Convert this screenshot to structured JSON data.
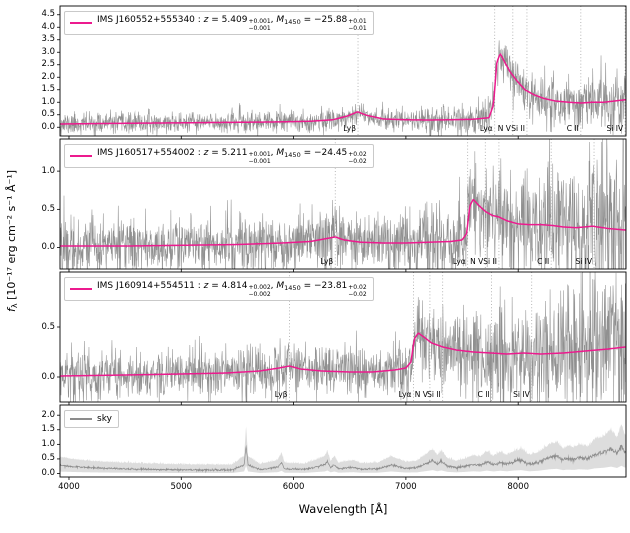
{
  "chart_data": {
    "type": "line",
    "description": "Stacked spectra of three quasars (gray noisy flux + magenta power-law/model fit) with marked emission lines, plus a bottom sky spectrum panel",
    "xlabel": "Wavelength [Å]",
    "x_range": [
      3920,
      8960
    ],
    "x_ticks": [
      4000,
      5000,
      6000,
      7000,
      8000
    ],
    "ylabel": {
      "symbol": "f",
      "subscript": "λ",
      "units": " [10⁻¹⁷ erg cm⁻² s⁻¹ Å⁻¹]"
    },
    "strings": {
      "colon": " : ",
      "z_sym": "z",
      "eq": " = ",
      "comma": ", ",
      "m_sym": "M",
      "m_sub": "1450"
    },
    "legend_position": "upper left",
    "grid": false,
    "panels": [
      {
        "id": "qso-1",
        "legend": {
          "name": "IMS J160552+555340",
          "z": "5.409",
          "z_up": "+0.001",
          "z_dn": "−0.001",
          "m": "−25.88",
          "m_up": "+0.01",
          "m_dn": "−0.01"
        },
        "z_value": 5.409,
        "color": "#ec1a8e",
        "noise_color": "#7d7d7d",
        "ylim": [
          -0.35,
          4.85
        ],
        "y_ticks": [
          0,
          0.5,
          1,
          1.5,
          2,
          2.5,
          3,
          3.5,
          4,
          4.5
        ],
        "lines": [
          {
            "label": "Lyβ",
            "rest": 1025.72
          },
          {
            "label": "Lyα",
            "rest": 1215.67
          },
          {
            "label": "N V",
            "rest": 1240.81
          },
          {
            "label": "Si II",
            "rest": 1260.42
          },
          {
            "label": "C II",
            "rest": 1335.31
          },
          {
            "label": "Si IV",
            "rest": 1396.76
          }
        ],
        "noise": {
          "base": 0.17,
          "red": 2.0,
          "sky": 1.3,
          "seed": 11
        },
        "model_points": [
          [
            3920,
            0.13
          ],
          [
            4300,
            0.15
          ],
          [
            4800,
            0.17
          ],
          [
            5300,
            0.19
          ],
          [
            5800,
            0.21
          ],
          [
            6150,
            0.24
          ],
          [
            6350,
            0.3
          ],
          [
            6480,
            0.45
          ],
          [
            6570,
            0.62
          ],
          [
            6650,
            0.48
          ],
          [
            6800,
            0.33
          ],
          [
            7000,
            0.3
          ],
          [
            7200,
            0.29
          ],
          [
            7400,
            0.3
          ],
          [
            7600,
            0.32
          ],
          [
            7740,
            0.38
          ],
          [
            7780,
            0.9
          ],
          [
            7810,
            2.6
          ],
          [
            7840,
            2.95
          ],
          [
            7880,
            2.6
          ],
          [
            7930,
            2.2
          ],
          [
            7990,
            1.85
          ],
          [
            8060,
            1.5
          ],
          [
            8140,
            1.3
          ],
          [
            8230,
            1.15
          ],
          [
            8330,
            1.05
          ],
          [
            8450,
            1.0
          ],
          [
            8560,
            0.97
          ],
          [
            8660,
            1.0
          ],
          [
            8760,
            1.0
          ],
          [
            8860,
            1.05
          ],
          [
            8950,
            1.1
          ]
        ]
      },
      {
        "id": "qso-2",
        "legend": {
          "name": "IMS J160517+554002",
          "z": "5.211",
          "z_up": "+0.001",
          "z_dn": "−0.001",
          "m": "−24.45",
          "m_up": "+0.02",
          "m_dn": "−0.02"
        },
        "z_value": 5.211,
        "color": "#ec1a8e",
        "noise_color": "#7d7d7d",
        "ylim": [
          -0.28,
          1.42
        ],
        "y_ticks": [
          0,
          0.5,
          1
        ],
        "lines": [
          {
            "label": "Lyβ",
            "rest": 1025.72
          },
          {
            "label": "Lyα",
            "rest": 1215.67
          },
          {
            "label": "N V",
            "rest": 1240.81
          },
          {
            "label": "Si II",
            "rest": 1260.42
          },
          {
            "label": "C II",
            "rest": 1335.31
          },
          {
            "label": "Si IV",
            "rest": 1396.76
          }
        ],
        "noise": {
          "base": 0.15,
          "red": 1.7,
          "sky": 1.5,
          "seed": 22
        },
        "model_points": [
          [
            3920,
            0.02
          ],
          [
            4500,
            0.02
          ],
          [
            5000,
            0.03
          ],
          [
            5500,
            0.04
          ],
          [
            5900,
            0.06
          ],
          [
            6150,
            0.08
          ],
          [
            6300,
            0.12
          ],
          [
            6371,
            0.14
          ],
          [
            6450,
            0.1
          ],
          [
            6600,
            0.07
          ],
          [
            6800,
            0.06
          ],
          [
            7000,
            0.06
          ],
          [
            7200,
            0.07
          ],
          [
            7400,
            0.08
          ],
          [
            7500,
            0.1
          ],
          [
            7540,
            0.18
          ],
          [
            7570,
            0.55
          ],
          [
            7600,
            0.63
          ],
          [
            7650,
            0.55
          ],
          [
            7710,
            0.47
          ],
          [
            7770,
            0.42
          ],
          [
            7830,
            0.4
          ],
          [
            7900,
            0.35
          ],
          [
            8000,
            0.31
          ],
          [
            8100,
            0.3
          ],
          [
            8200,
            0.3
          ],
          [
            8300,
            0.29
          ],
          [
            8400,
            0.27
          ],
          [
            8520,
            0.26
          ],
          [
            8660,
            0.28
          ],
          [
            8800,
            0.25
          ],
          [
            8950,
            0.23
          ]
        ]
      },
      {
        "id": "qso-3",
        "legend": {
          "name": "IMS J160914+554511",
          "z": "4.814",
          "z_up": "+0.002",
          "z_dn": "−0.002",
          "m": "−23.81",
          "m_up": "+0.02",
          "m_dn": "−0.02"
        },
        "z_value": 4.814,
        "color": "#ec1a8e",
        "noise_color": "#7d7d7d",
        "ylim": [
          -0.25,
          1.05
        ],
        "y_ticks": [
          0,
          0.5
        ],
        "lines": [
          {
            "label": "Lyβ",
            "rest": 1025.72
          },
          {
            "label": "Lyα",
            "rest": 1215.67
          },
          {
            "label": "N V",
            "rest": 1240.81
          },
          {
            "label": "Si II",
            "rest": 1260.42
          },
          {
            "label": "C II",
            "rest": 1335.31
          },
          {
            "label": "Si IV",
            "rest": 1396.76
          }
        ],
        "noise": {
          "base": 0.1,
          "red": 1.9,
          "sky": 1.5,
          "seed": 33
        },
        "model_points": [
          [
            3920,
            0.01
          ],
          [
            4500,
            0.02
          ],
          [
            5000,
            0.03
          ],
          [
            5400,
            0.04
          ],
          [
            5700,
            0.06
          ],
          [
            5870,
            0.09
          ],
          [
            5964,
            0.11
          ],
          [
            6060,
            0.08
          ],
          [
            6250,
            0.06
          ],
          [
            6500,
            0.05
          ],
          [
            6700,
            0.05
          ],
          [
            6900,
            0.07
          ],
          [
            7000,
            0.09
          ],
          [
            7045,
            0.15
          ],
          [
            7075,
            0.38
          ],
          [
            7110,
            0.44
          ],
          [
            7160,
            0.4
          ],
          [
            7230,
            0.34
          ],
          [
            7330,
            0.3
          ],
          [
            7450,
            0.27
          ],
          [
            7600,
            0.25
          ],
          [
            7760,
            0.24
          ],
          [
            7900,
            0.23
          ],
          [
            8050,
            0.24
          ],
          [
            8200,
            0.23
          ],
          [
            8400,
            0.24
          ],
          [
            8600,
            0.26
          ],
          [
            8800,
            0.28
          ],
          [
            8950,
            0.3
          ]
        ]
      },
      {
        "id": "sky",
        "legend": {
          "name": "sky"
        },
        "color": "#8c8c8c",
        "ylim": [
          -0.12,
          2.35
        ],
        "y_ticks": [
          0,
          0.5,
          1,
          1.5,
          2
        ],
        "lines": [],
        "band": {
          "upper_scale": 1.6,
          "upper_offset": 0.1,
          "lower_scale": 0.3,
          "lower_offset": -0.02,
          "fill": "#d4d4d4"
        },
        "noise": {
          "base": 0.015,
          "red": 1.2,
          "sky": 0.3,
          "seed": 44
        },
        "model_points": [
          [
            3920,
            0.28
          ],
          [
            4100,
            0.22
          ],
          [
            4300,
            0.18
          ],
          [
            4600,
            0.15
          ],
          [
            4900,
            0.13
          ],
          [
            5200,
            0.12
          ],
          [
            5450,
            0.12
          ],
          [
            5560,
            0.3
          ],
          [
            5577,
            0.95
          ],
          [
            5595,
            0.3
          ],
          [
            5700,
            0.13
          ],
          [
            5860,
            0.22
          ],
          [
            5893,
            0.38
          ],
          [
            5920,
            0.16
          ],
          [
            6100,
            0.14
          ],
          [
            6280,
            0.3
          ],
          [
            6300,
            0.42
          ],
          [
            6330,
            0.2
          ],
          [
            6364,
            0.3
          ],
          [
            6400,
            0.16
          ],
          [
            6533,
            0.22
          ],
          [
            6600,
            0.15
          ],
          [
            6750,
            0.16
          ],
          [
            6870,
            0.3
          ],
          [
            6950,
            0.22
          ],
          [
            7000,
            0.18
          ],
          [
            7100,
            0.2
          ],
          [
            7240,
            0.45
          ],
          [
            7280,
            0.32
          ],
          [
            7316,
            0.42
          ],
          [
            7370,
            0.25
          ],
          [
            7450,
            0.2
          ],
          [
            7530,
            0.25
          ],
          [
            7600,
            0.32
          ],
          [
            7660,
            0.28
          ],
          [
            7720,
            0.4
          ],
          [
            7780,
            0.3
          ],
          [
            7840,
            0.38
          ],
          [
            7900,
            0.32
          ],
          [
            7960,
            0.4
          ],
          [
            8025,
            0.45
          ],
          [
            8100,
            0.32
          ],
          [
            8180,
            0.38
          ],
          [
            8280,
            0.55
          ],
          [
            8344,
            0.6
          ],
          [
            8400,
            0.45
          ],
          [
            8430,
            0.5
          ],
          [
            8500,
            0.48
          ],
          [
            8540,
            0.55
          ],
          [
            8620,
            0.5
          ],
          [
            8680,
            0.65
          ],
          [
            8760,
            0.72
          ],
          [
            8827,
            0.85
          ],
          [
            8880,
            0.7
          ],
          [
            8919,
            0.95
          ],
          [
            8950,
            0.75
          ]
        ]
      }
    ]
  }
}
